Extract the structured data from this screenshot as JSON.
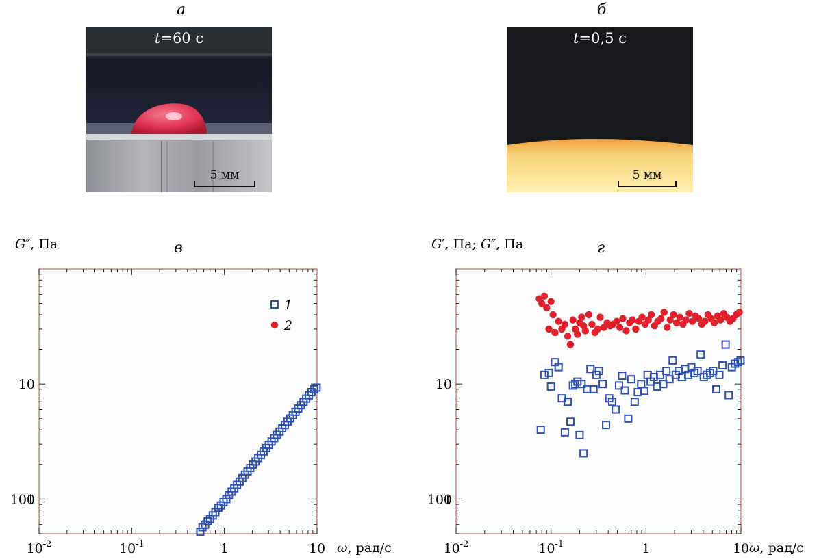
{
  "panels": {
    "a": {
      "label": "а",
      "time": "=60 с",
      "time_var": "t",
      "scale_text": "5 мм"
    },
    "b": {
      "label": "б",
      "time": "=0,5 с",
      "time_var": "t",
      "scale_text": "5 мм"
    }
  },
  "colors": {
    "series1": "#2c4fb3",
    "series2": "#e0212b",
    "frame": "#c26a5a"
  },
  "chart_data": [
    {
      "type": "scatter",
      "panel_label": "в",
      "ylabel_var": "G″",
      "ylabel_unit": ", Па",
      "xlabel_var": "ω",
      "xlabel_unit": ", рад/с",
      "x_scale": "log",
      "y_scale": "log",
      "xlim": [
        0.01,
        10
      ],
      "ylim": [
        0.5,
        100
      ],
      "x_ticks": [
        "10-2",
        "10-1",
        "1",
        "10"
      ],
      "y_ticks": [
        "1",
        "10",
        "100"
      ],
      "legend": {
        "placement": "top-right",
        "entries": [
          {
            "label": "1",
            "marker": "open-square",
            "color": "#2c4fb3"
          },
          {
            "label": "2",
            "marker": "filled-circle",
            "color": "#e0212b"
          }
        ]
      },
      "series": [
        {
          "name": "1",
          "marker": "open-square",
          "color": "#2c4fb3",
          "x": [
            0.55,
            0.58,
            0.62,
            0.66,
            0.7,
            0.75,
            0.8,
            0.86,
            0.92,
            0.98,
            1.05,
            1.12,
            1.2,
            1.28,
            1.37,
            1.46,
            1.56,
            1.67,
            1.78,
            1.9,
            2.03,
            2.17,
            2.32,
            2.48,
            2.65,
            2.83,
            3.02,
            3.23,
            3.45,
            3.69,
            3.94,
            4.21,
            4.5,
            4.8,
            5.13,
            5.48,
            5.86,
            6.26,
            6.69,
            7.15,
            7.64,
            8.16,
            8.72,
            9.3,
            9.9
          ],
          "y": [
            0.52,
            0.57,
            0.6,
            0.64,
            0.67,
            0.72,
            0.77,
            0.84,
            0.88,
            0.94,
            1.0,
            1.08,
            1.16,
            1.24,
            1.33,
            1.42,
            1.52,
            1.63,
            1.74,
            1.86,
            1.99,
            2.12,
            2.27,
            2.42,
            2.59,
            2.77,
            2.96,
            3.16,
            3.38,
            3.61,
            3.86,
            4.12,
            4.4,
            4.7,
            5.02,
            5.36,
            5.73,
            6.12,
            6.54,
            6.98,
            7.46,
            7.97,
            8.5,
            9.0,
            9.3
          ]
        }
      ]
    },
    {
      "type": "scatter",
      "panel_label": "г",
      "ylabel_var1": "G′",
      "ylabel_unit1": ", Па; ",
      "ylabel_var2": "G″",
      "ylabel_unit2": ", Па",
      "xlabel_var": "ω",
      "xlabel_unit": ", рад/с",
      "x_scale": "log",
      "y_scale": "log",
      "xlim": [
        0.01,
        10
      ],
      "ylim": [
        0.5,
        100
      ],
      "x_ticks": [
        "10-2",
        "10-1",
        "1",
        "10"
      ],
      "y_ticks": [
        "1",
        "10",
        "100"
      ],
      "series": [
        {
          "name": "",
          "marker": "filled-circle",
          "color": "#e0212b",
          "x": [
            0.075,
            0.08,
            0.085,
            0.09,
            0.095,
            0.1,
            0.105,
            0.11,
            0.12,
            0.13,
            0.14,
            0.15,
            0.16,
            0.17,
            0.18,
            0.19,
            0.2,
            0.21,
            0.22,
            0.23,
            0.25,
            0.27,
            0.29,
            0.31,
            0.33,
            0.36,
            0.39,
            0.42,
            0.45,
            0.49,
            0.53,
            0.57,
            0.62,
            0.67,
            0.72,
            0.78,
            0.84,
            0.91,
            0.98,
            1.06,
            1.14,
            1.23,
            1.33,
            1.44,
            1.55,
            1.67,
            1.8,
            1.95,
            2.1,
            2.27,
            2.45,
            2.64,
            2.85,
            3.08,
            3.32,
            3.58,
            3.87,
            4.17,
            4.5,
            4.86,
            5.24,
            5.66,
            6.1,
            6.58,
            7.1,
            7.66,
            8.27,
            8.92,
            9.62
          ],
          "y": [
            55,
            50,
            58,
            46,
            30,
            52,
            40,
            28,
            35,
            30,
            33,
            26,
            22,
            36,
            30,
            27,
            34,
            38,
            32,
            29,
            40,
            33,
            28,
            30,
            38,
            31,
            34,
            32,
            33,
            35,
            31,
            37,
            29,
            34,
            36,
            30,
            35,
            38,
            33,
            36,
            40,
            32,
            35,
            37,
            42,
            31,
            36,
            40,
            34,
            38,
            33,
            36,
            41,
            35,
            39,
            37,
            33,
            35,
            40,
            37,
            34,
            39,
            36,
            41,
            38,
            35,
            37,
            40,
            42
          ]
        },
        {
          "name": "",
          "marker": "open-square",
          "color": "#2c4fb3",
          "x": [
            0.078,
            0.085,
            0.095,
            0.1,
            0.11,
            0.12,
            0.13,
            0.14,
            0.15,
            0.16,
            0.17,
            0.18,
            0.19,
            0.2,
            0.21,
            0.22,
            0.24,
            0.26,
            0.28,
            0.3,
            0.32,
            0.35,
            0.38,
            0.41,
            0.44,
            0.48,
            0.52,
            0.56,
            0.6,
            0.65,
            0.7,
            0.76,
            0.82,
            0.89,
            0.96,
            1.04,
            1.12,
            1.21,
            1.31,
            1.41,
            1.52,
            1.64,
            1.77,
            1.91,
            2.06,
            2.22,
            2.39,
            2.58,
            2.78,
            3.0,
            3.24,
            3.49,
            3.77,
            4.06,
            4.38,
            4.73,
            5.1,
            5.5,
            5.93,
            6.4,
            6.9,
            7.44,
            8.02,
            8.65,
            9.33,
            9.9
          ],
          "y": [
            4,
            12,
            12.5,
            9.5,
            15.5,
            14,
            7.5,
            3.8,
            7,
            4.7,
            9.7,
            10,
            10.5,
            3.6,
            10,
            2.5,
            9,
            13.5,
            9,
            12,
            13,
            10,
            4.4,
            7.5,
            7,
            6,
            9.7,
            11.8,
            8.8,
            5,
            11,
            7,
            8.5,
            10,
            8.7,
            12,
            10.5,
            11.5,
            9.5,
            12,
            10,
            13,
            11,
            16,
            12,
            13,
            11.5,
            13.5,
            12,
            14,
            12.5,
            13,
            18,
            11.5,
            12,
            12.5,
            13,
            9,
            12,
            14.5,
            22,
            8,
            14,
            15,
            15.5,
            16
          ]
        }
      ]
    }
  ]
}
